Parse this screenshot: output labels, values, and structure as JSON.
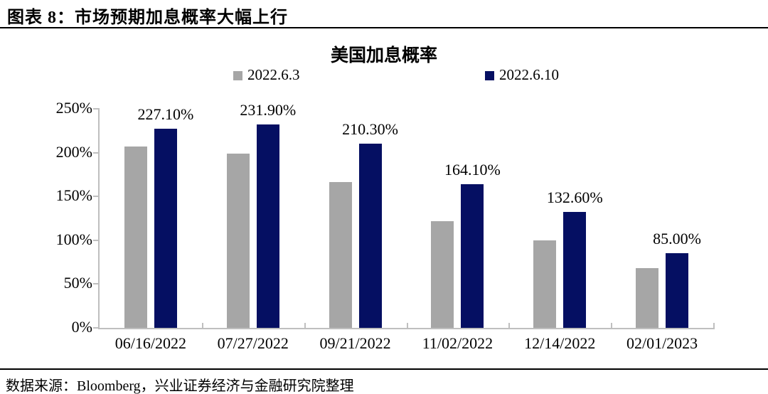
{
  "header": {
    "title": "图表 8：市场预期加息概率大幅上行"
  },
  "footer": {
    "source": "数据来源：Bloomberg，兴业证券经济与金融研究院整理"
  },
  "chart_data": {
    "type": "bar",
    "title": "美国加息概率",
    "categories": [
      "06/16/2022",
      "07/27/2022",
      "09/21/2022",
      "11/02/2022",
      "12/14/2022",
      "02/01/2023"
    ],
    "series": [
      {
        "name": "2022.6.3",
        "color": "#a6a6a6",
        "values": [
          207.0,
          199.0,
          166.0,
          122.0,
          100.0,
          68.0
        ]
      },
      {
        "name": "2022.6.10",
        "color": "#050f62",
        "values": [
          227.1,
          231.9,
          210.3,
          164.1,
          132.6,
          85.0
        ],
        "data_labels": [
          "227.10%",
          "231.90%",
          "210.30%",
          "164.10%",
          "132.60%",
          "85.00%"
        ]
      }
    ],
    "ylim": [
      0,
      250
    ],
    "ytick_labels": [
      "0%",
      "50%",
      "100%",
      "150%",
      "200%",
      "250%"
    ],
    "grid": false,
    "legend_position": "top",
    "axis_color": "#bfbfbf",
    "text_color": "#000000"
  }
}
